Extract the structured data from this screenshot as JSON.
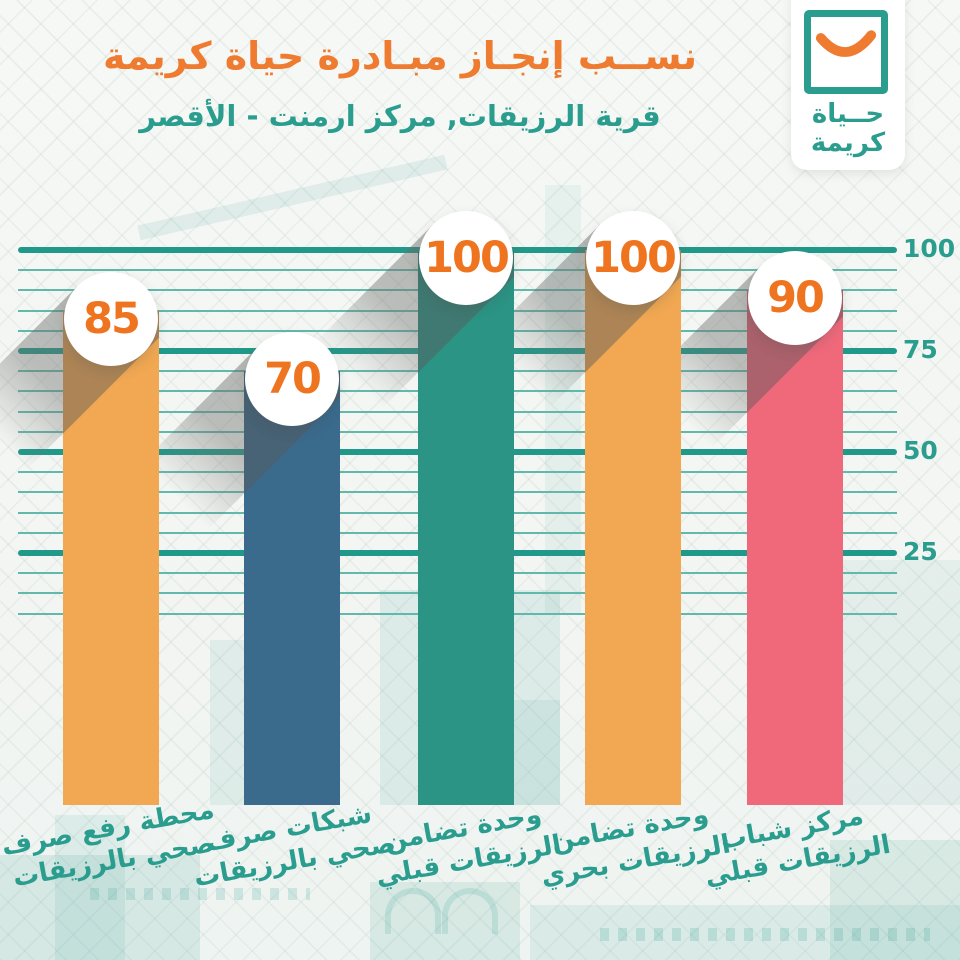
{
  "header": {
    "title": "نســب إنجـاز مبـادرة حياة كريمة",
    "subtitle": "قرية الرزيقات, مركز ارمنت -  الأقصر"
  },
  "logo": {
    "line1": "حــياة",
    "line2": "كريمة",
    "smile_icon": "orange-smile-icon"
  },
  "chart_data": {
    "type": "bar",
    "title": "نســب إنجـاز مبـادرة حياة كريمة",
    "subtitle": "قرية الرزيقات, مركز ارمنت - الأقصر",
    "unit": "%",
    "ylim": [
      0,
      100
    ],
    "y_ticks": [
      100,
      75,
      50,
      25
    ],
    "tick_labels": [
      "100",
      "75",
      "50",
      "25"
    ],
    "grid": "horizontal major every 25, four minor lines every 5, legend none",
    "categories": [
      "محطة رفع صرف صحي بالرزيقات",
      "شبكات صرف صحي بالرزيقات",
      "وحدة تضامن الرزيقات قبلي",
      "وحدة تضامن الرزيقات بحري",
      "مركز شباب الرزيقات قبلي"
    ],
    "values": [
      85,
      70,
      100,
      100,
      90
    ],
    "bars": [
      {
        "value": 85,
        "label_line1": "محطة رفع صرف",
        "label_line2": "صحي بالرزيقات",
        "color": "#f2a852"
      },
      {
        "value": 70,
        "label_line1": "شبكات صرف",
        "label_line2": "صحي بالرزيقات",
        "color": "#3a6a8c"
      },
      {
        "value": 100,
        "label_line1": "وحدة تضامن",
        "label_line2": "الرزيقات قبلي",
        "color": "#2b9484"
      },
      {
        "value": 100,
        "label_line1": "وحدة تضامن",
        "label_line2": "الرزيقات بحري",
        "color": "#f2a852"
      },
      {
        "value": 90,
        "label_line1": "مركز شباب",
        "label_line2": "الرزيقات قبلي",
        "color": "#f0697b"
      }
    ]
  },
  "colors": {
    "title_orange": "#ee7b2f",
    "value_orange": "#ee7420",
    "teal": "#2a9d8f",
    "grid_major": "#21998a",
    "grid_minor": "#63b8ac",
    "bar_orange": "#f2a852",
    "bar_blue": "#3a6a8c",
    "bar_teal": "#2b9484",
    "bar_pink": "#f0697b"
  }
}
